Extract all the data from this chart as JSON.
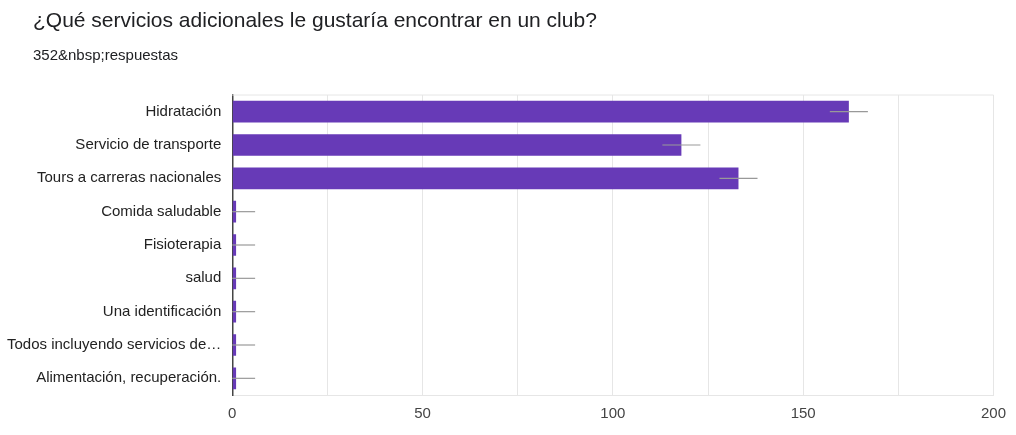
{
  "chart_data": {
    "type": "bar",
    "orientation": "horizontal",
    "title": "¿Qué servicios adicionales le gustaría encontrar en un club?",
    "subtitle": "352&nbsp;respuestas",
    "categories": [
      "Hidratación",
      "Servicio de transporte",
      "Tours a carreras nacionales",
      "Comida saludable",
      "Fisioterapia",
      "salud",
      "Una identificación",
      "Todos incluyendo servicios de…",
      "Alimentación, recuperación."
    ],
    "values": [
      162,
      118,
      133,
      1,
      1,
      1,
      1,
      1,
      1
    ],
    "errors": [
      [
        157,
        167
      ],
      [
        113,
        123
      ],
      [
        128,
        138
      ],
      [
        0,
        6
      ],
      [
        0,
        6
      ],
      [
        0,
        6
      ],
      [
        0,
        6
      ],
      [
        0,
        6
      ],
      [
        0,
        6
      ]
    ],
    "color": "#673ab7",
    "xlim": [
      0,
      200
    ],
    "xticks": [
      0,
      {
        "value": 25,
        "label": null
      },
      50,
      {
        "value": 75,
        "label": null
      },
      100,
      {
        "value": 125,
        "label": null
      },
      150,
      {
        "value": 175,
        "label": null
      },
      200
    ],
    "grid": true,
    "legend": false
  }
}
